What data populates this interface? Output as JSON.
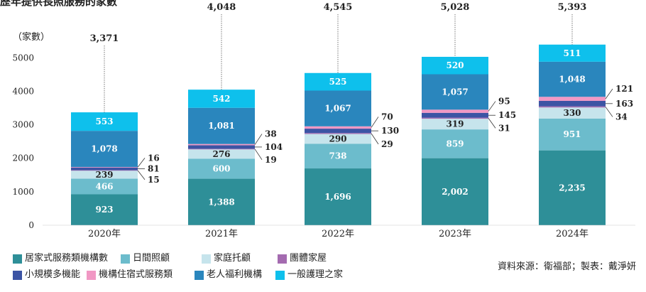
{
  "title_fragment": "歷年提供長照服務的家數",
  "unit_label": "（家數）",
  "source": "資料來源：衛福部；製表：戴淨妍",
  "chart_data": {
    "type": "bar",
    "stacked": true,
    "categories": [
      "2020年",
      "2021年",
      "2022年",
      "2023年",
      "2024年"
    ],
    "yticks": [
      0,
      1000,
      2000,
      3000,
      4000,
      5000
    ],
    "ylim": [
      0,
      5600
    ],
    "totals": [
      3371,
      4048,
      4545,
      5028,
      5393
    ],
    "total_labels": [
      "3,371",
      "4,048",
      "4,545",
      "5,028",
      "5,393"
    ],
    "series": [
      {
        "name": "居家式服務類機構數",
        "color": "#2e8f98",
        "values": [
          923,
          1388,
          1696,
          2002,
          2235
        ],
        "labels": [
          "923",
          "1,388",
          "1,696",
          "2,002",
          "2,235"
        ]
      },
      {
        "name": "日間照顧",
        "color": "#6cbccc",
        "values": [
          466,
          600,
          738,
          859,
          951
        ],
        "labels": [
          "466",
          "600",
          "738",
          "859",
          "951"
        ]
      },
      {
        "name": "家庭托顧",
        "color": "#c6e4ec",
        "values": [
          239,
          276,
          290,
          319,
          330
        ],
        "labels": [
          "239",
          "276",
          "290",
          "319",
          "330"
        ]
      },
      {
        "name": "團體家屋",
        "color": "#a46bb0",
        "values": [
          15,
          19,
          29,
          31,
          34
        ],
        "labels": [
          "15",
          "19",
          "29",
          "31",
          "34"
        ]
      },
      {
        "name": "小規模多機能",
        "color": "#3c54a4",
        "values": [
          81,
          104,
          130,
          145,
          163
        ],
        "labels": [
          "81",
          "104",
          "130",
          "145",
          "163"
        ]
      },
      {
        "name": "機構住宿式服務類",
        "color": "#f198c4",
        "values": [
          16,
          38,
          70,
          95,
          121
        ],
        "labels": [
          "16",
          "38",
          "70",
          "95",
          "121"
        ]
      },
      {
        "name": "老人福利機構",
        "color": "#2a86bd",
        "values": [
          1078,
          1081,
          1067,
          1057,
          1048
        ],
        "labels": [
          "1,078",
          "1,081",
          "1,067",
          "1,057",
          "1,048"
        ]
      },
      {
        "name": "一般護理之家",
        "color": "#0ec0ec",
        "values": [
          553,
          542,
          525,
          520,
          511
        ],
        "labels": [
          "553",
          "542",
          "525",
          "520",
          "511"
        ]
      }
    ]
  }
}
